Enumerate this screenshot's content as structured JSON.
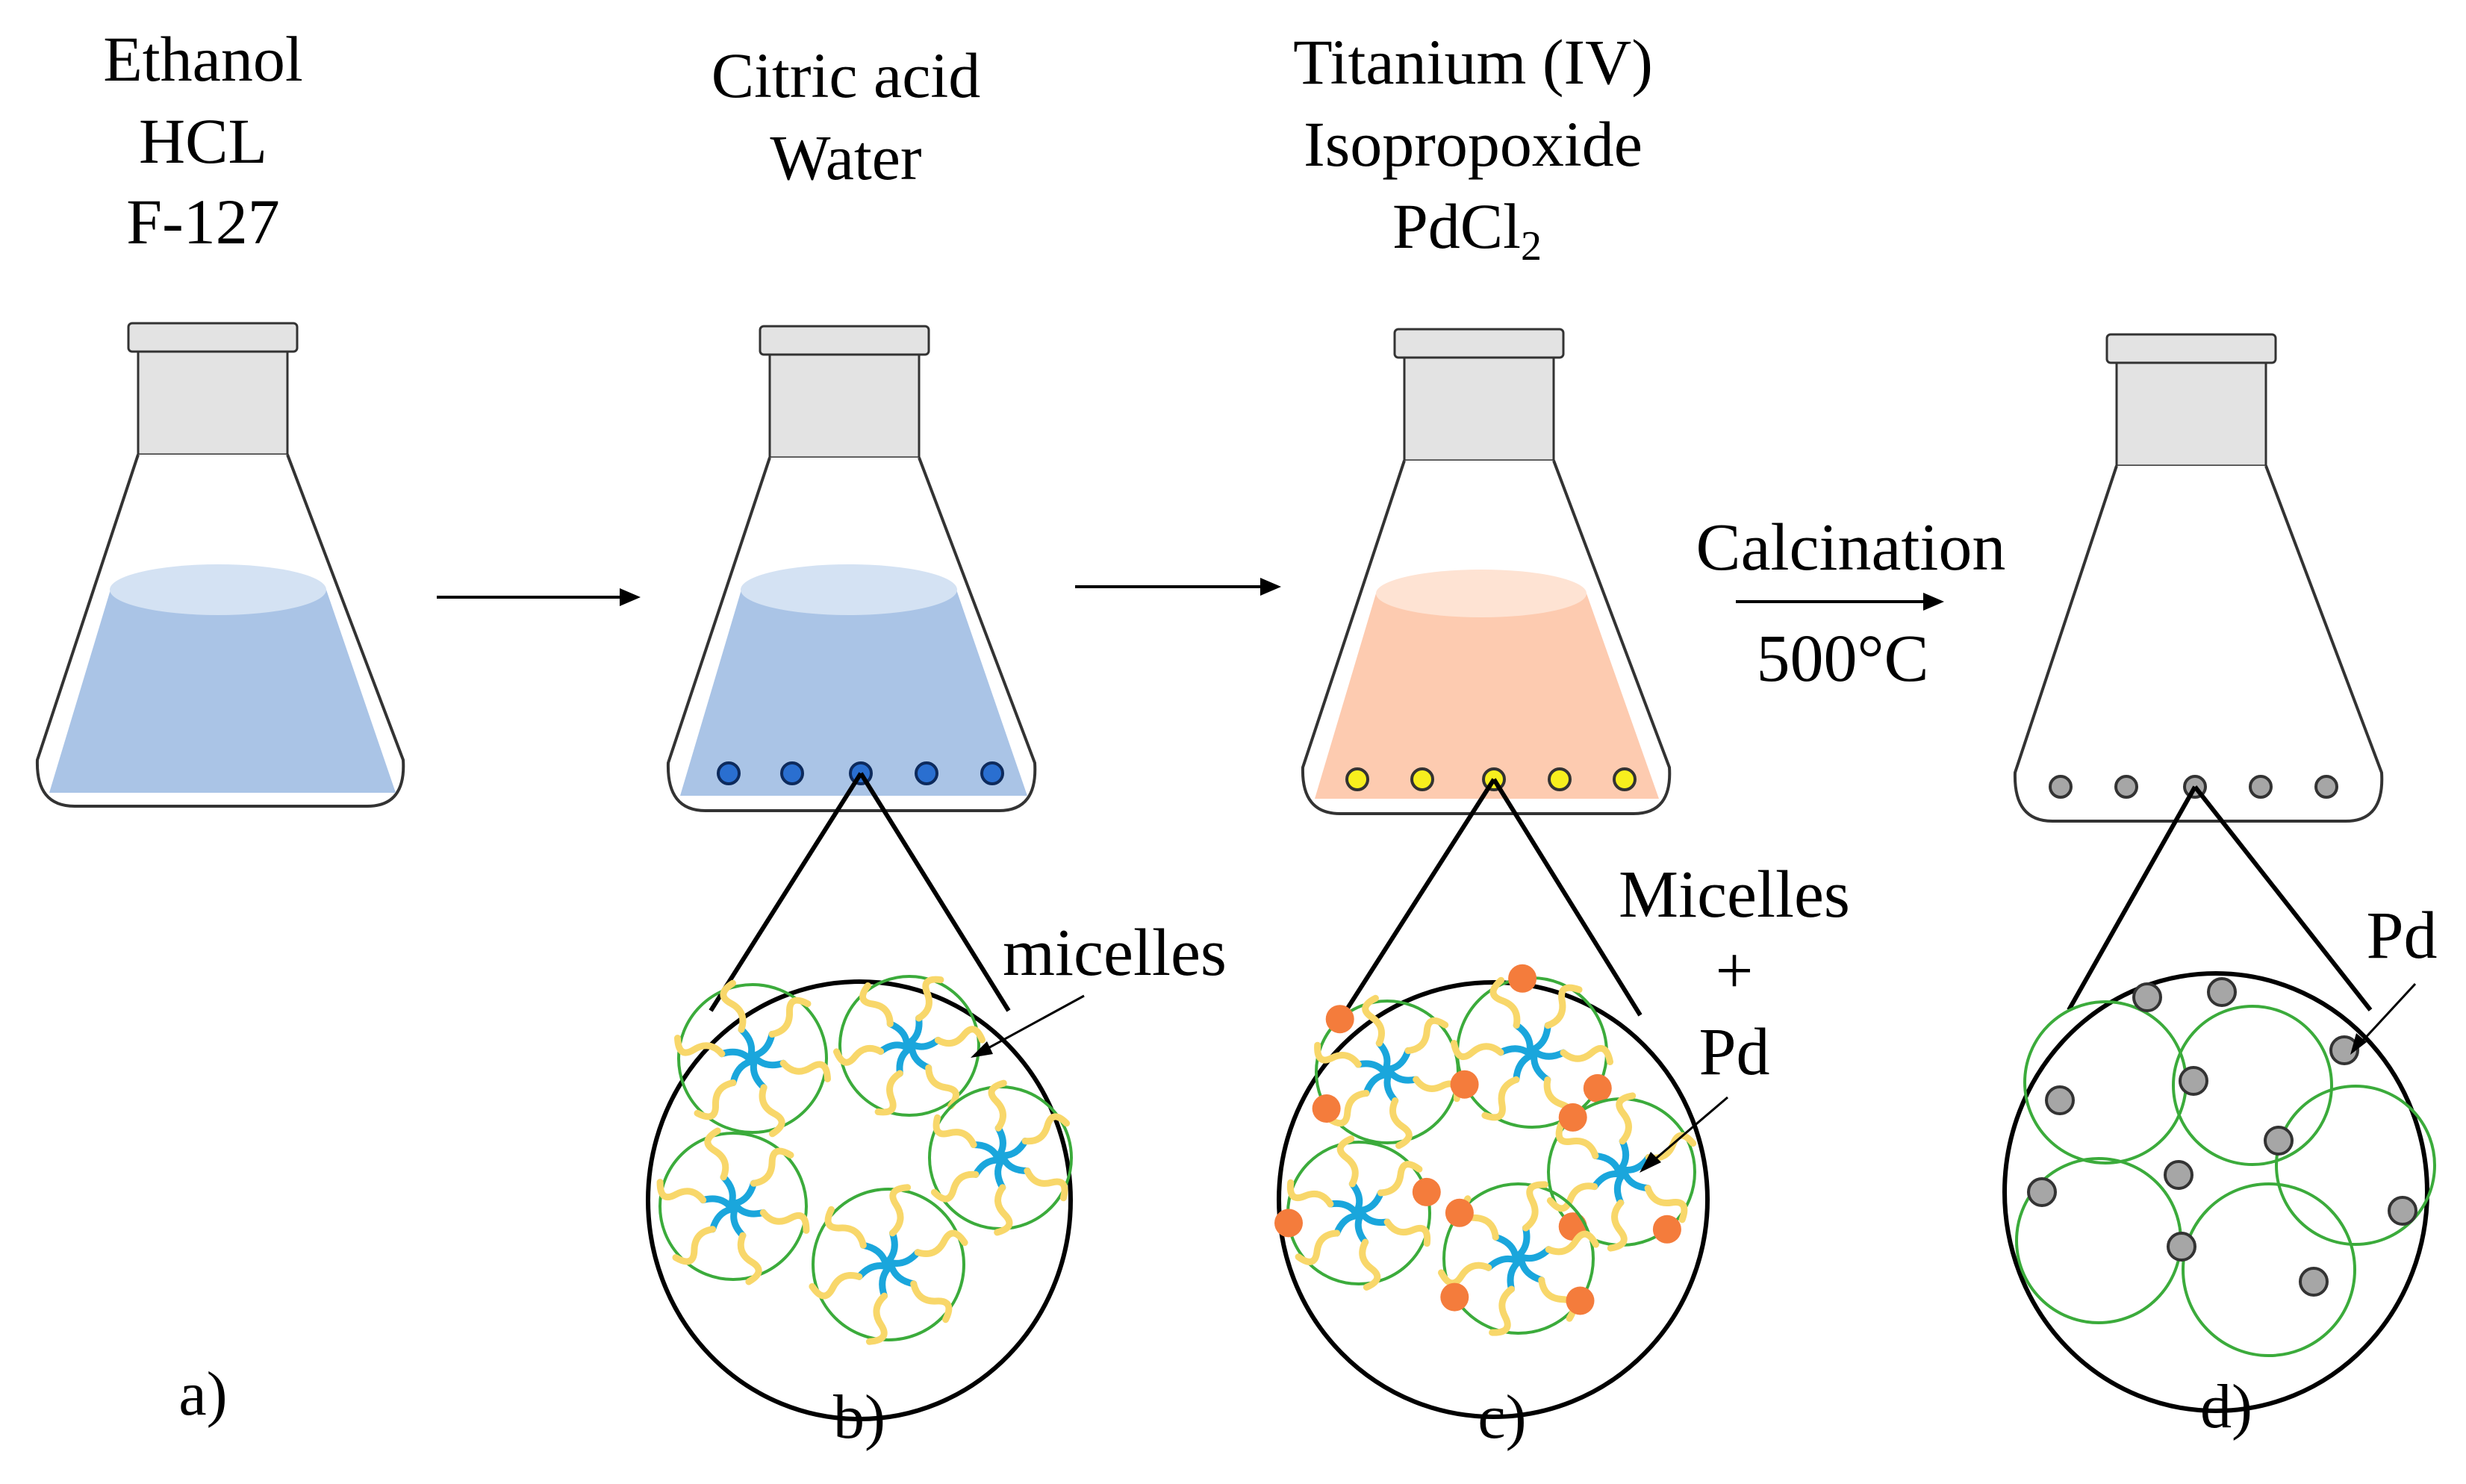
{
  "steps": [
    {
      "panel_label": "a)",
      "reagent_lines": [
        "Ethanol",
        "HCL",
        "F-127"
      ],
      "liquid_color": "#aac4e6",
      "particle_color": ""
    },
    {
      "panel_label": "b)",
      "reagent_lines": [
        "Citric acid",
        "Water"
      ],
      "liquid_color": "#aac4e6",
      "particle_color": "#2a6fd0",
      "zoom_label": "micelles"
    },
    {
      "panel_label": "c)",
      "reagent_lines": [
        "Titanium (IV)",
        "Isopropoxide",
        "PdCl",
        "2"
      ],
      "liquid_color": "#fdcbb0",
      "particle_color": "#f7ef1e",
      "zoom_label_lines": [
        "Micelles",
        "+",
        "Pd"
      ]
    },
    {
      "panel_label": "d)",
      "liquid_color": "",
      "particle_color": "#a6a6a6",
      "zoom_label": "Pd"
    }
  ],
  "arrow_texts": {
    "above": "Calcination",
    "below": "500°C"
  },
  "colors": {
    "flask_neck": "#e3e3e3",
    "micelle_ring": "#3bab3b",
    "micelle_core": "#1aa6dc",
    "micelle_tail": "#f8d76a",
    "pd_particle": "#f47c3c",
    "pd_calcined": "#a6a6a6"
  }
}
